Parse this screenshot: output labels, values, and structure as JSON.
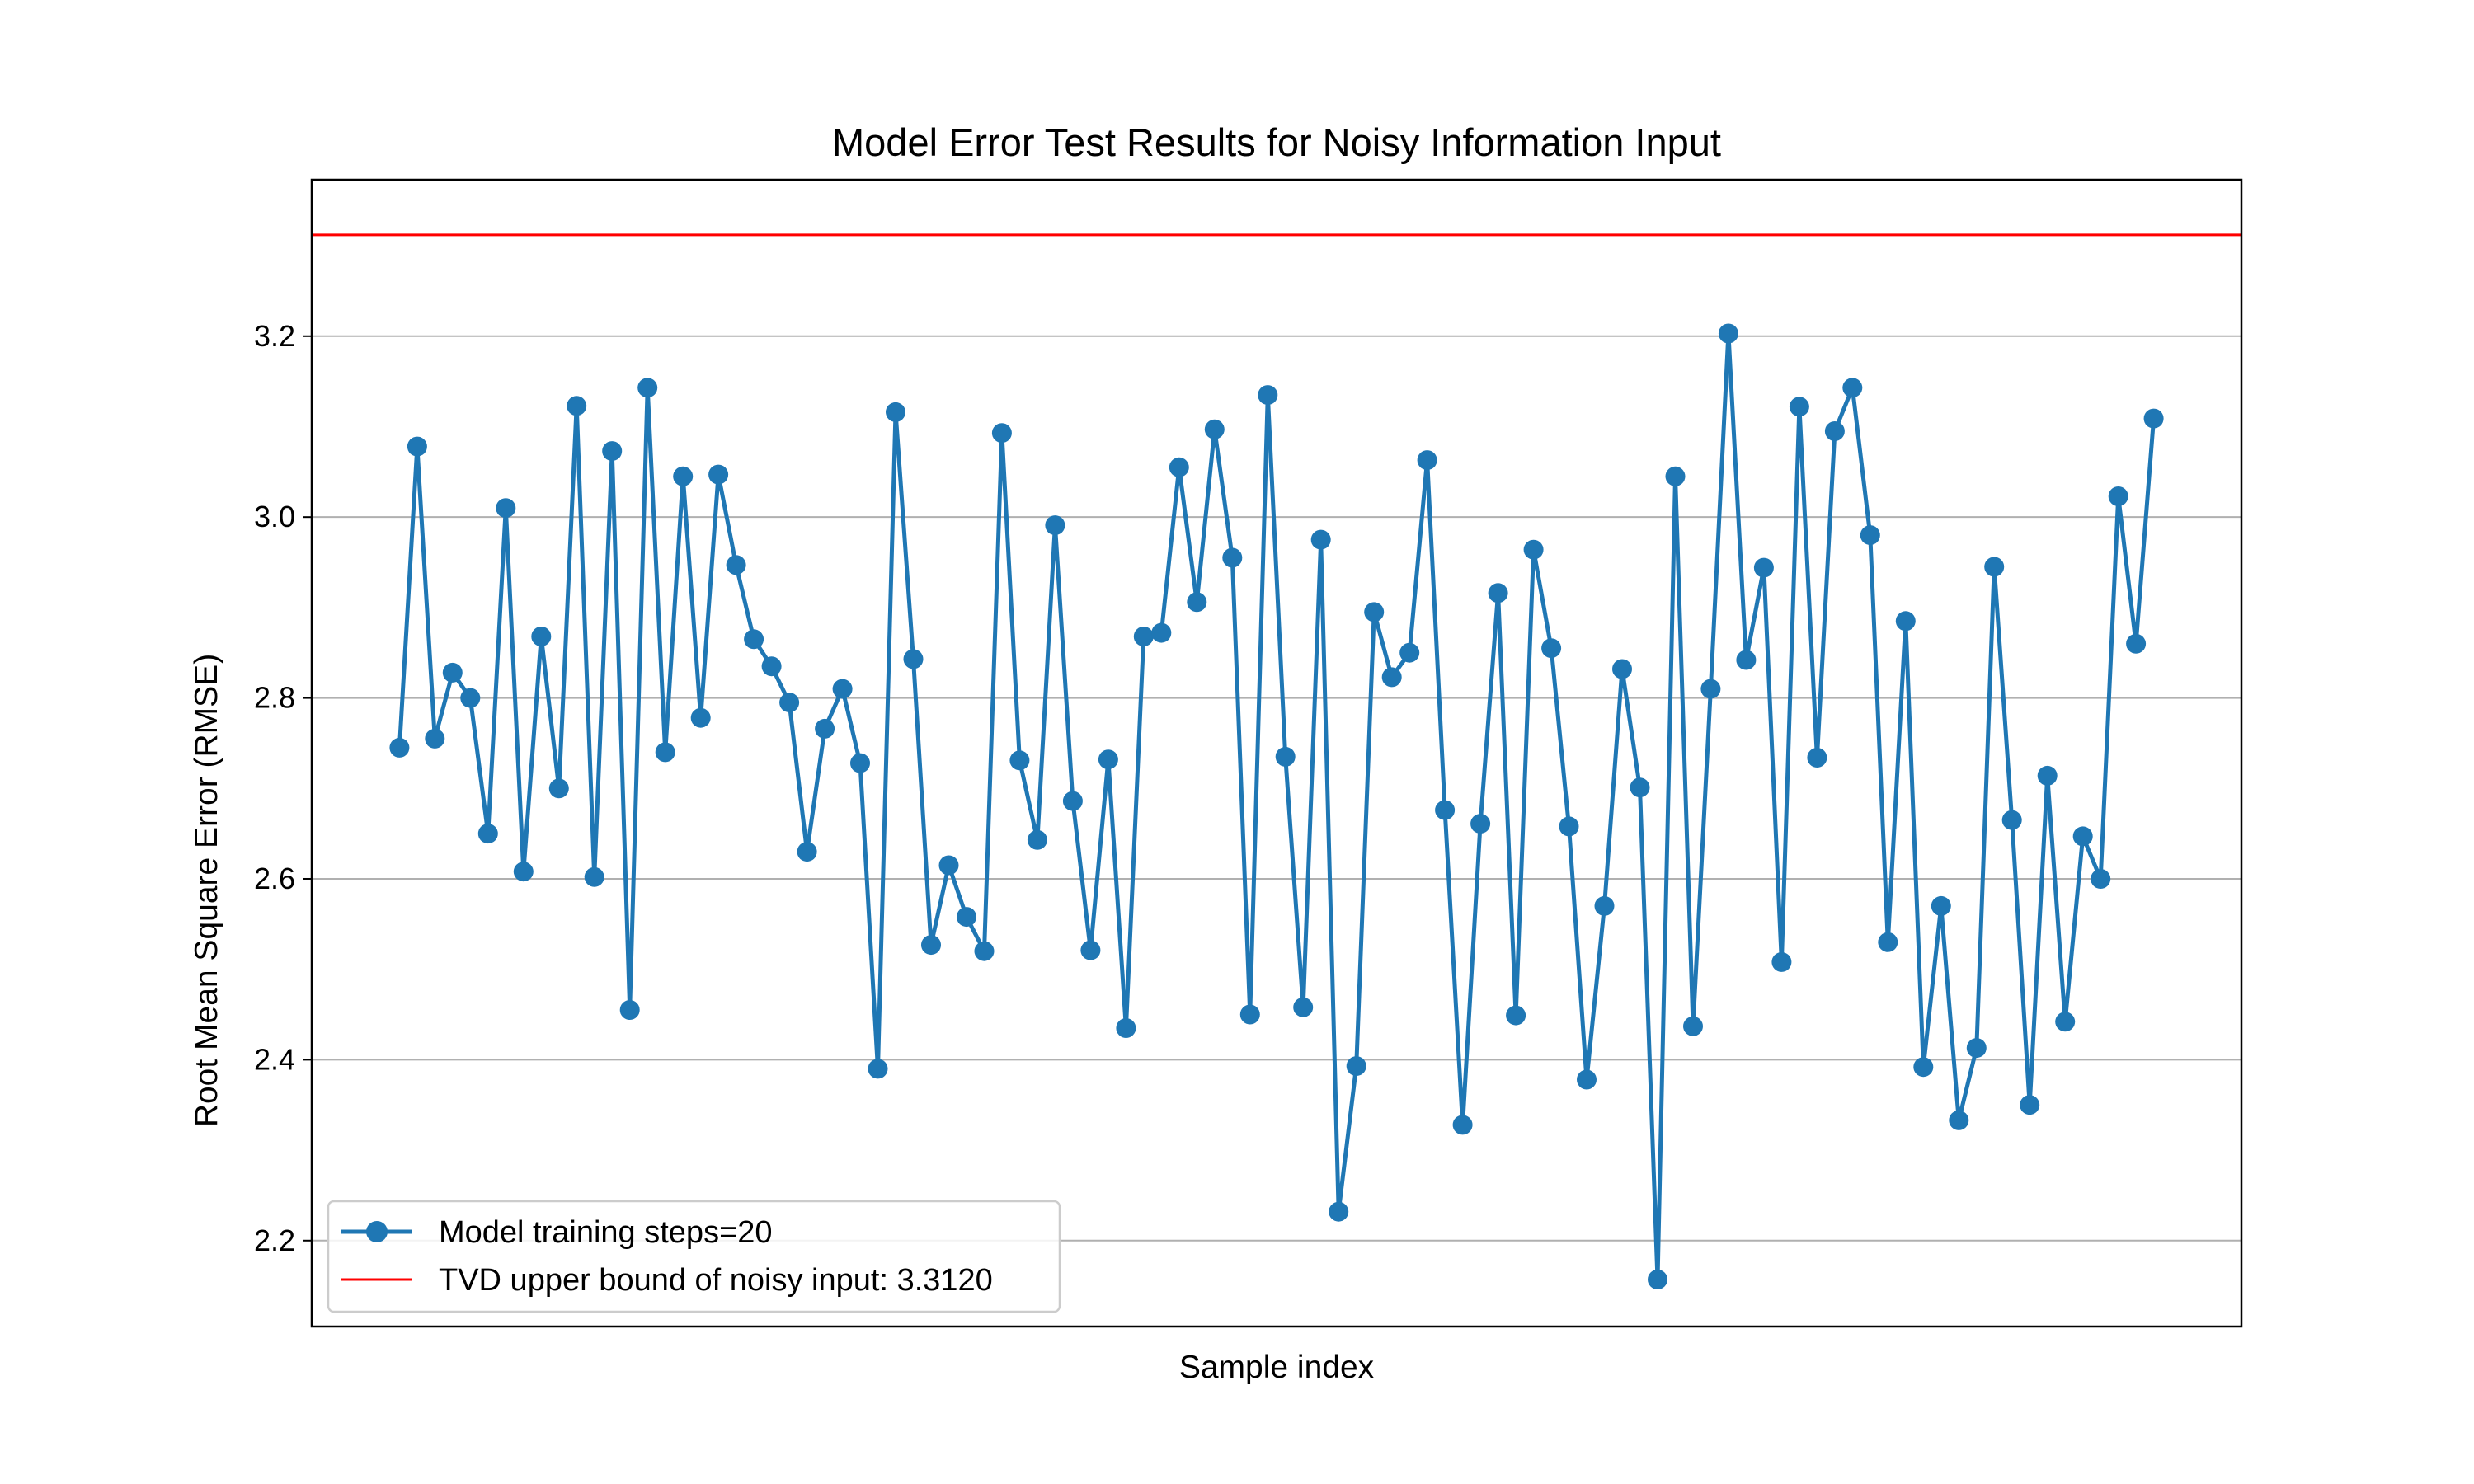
{
  "chart_data": {
    "type": "line",
    "title": "Model Error Test Results for Noisy Information Input",
    "xlabel": "Sample index",
    "ylabel": "Root Mean Square Error (RMSE)",
    "ylim": [
      2.105,
      3.373
    ],
    "yticks": [
      2.2,
      2.4,
      2.6,
      2.8,
      3.0,
      3.2
    ],
    "ytick_labels": [
      "2.2",
      "2.4",
      "2.6",
      "2.8",
      "3.0",
      "3.2"
    ],
    "xlim": [
      -4.95,
      103.95
    ],
    "xticks_visible": false,
    "grid": "y",
    "legend_position": "lower-left",
    "series": [
      {
        "name": "Model training steps=20",
        "color": "#1f77b4",
        "marker": "circle",
        "x": [
          0,
          1,
          2,
          3,
          4,
          5,
          6,
          7,
          8,
          9,
          10,
          11,
          12,
          13,
          14,
          15,
          16,
          17,
          18,
          19,
          20,
          21,
          22,
          23,
          24,
          25,
          26,
          27,
          28,
          29,
          30,
          31,
          32,
          33,
          34,
          35,
          36,
          37,
          38,
          39,
          40,
          41,
          42,
          43,
          44,
          45,
          46,
          47,
          48,
          49,
          50,
          51,
          52,
          53,
          54,
          55,
          56,
          57,
          58,
          59,
          60,
          61,
          62,
          63,
          64,
          65,
          66,
          67,
          68,
          69,
          70,
          71,
          72,
          73,
          74,
          75,
          76,
          77,
          78,
          79,
          80,
          81,
          82,
          83,
          84,
          85,
          86,
          87,
          88,
          89,
          90,
          91,
          92,
          93,
          94,
          95,
          96,
          97,
          98,
          99
        ],
        "y": [
          2.745,
          3.078,
          2.755,
          2.828,
          2.8,
          2.65,
          3.01,
          2.608,
          2.868,
          2.7,
          3.123,
          2.602,
          3.073,
          2.455,
          3.143,
          2.74,
          3.045,
          2.778,
          3.047,
          2.947,
          2.865,
          2.835,
          2.795,
          2.63,
          2.766,
          2.81,
          2.728,
          2.39,
          3.116,
          2.843,
          2.527,
          2.615,
          2.558,
          2.52,
          3.093,
          2.731,
          2.643,
          2.991,
          2.686,
          2.521,
          2.732,
          2.435,
          2.868,
          2.872,
          3.055,
          2.906,
          3.097,
          2.955,
          2.45,
          3.135,
          2.735,
          2.458,
          2.975,
          2.232,
          2.393,
          2.895,
          2.823,
          2.85,
          3.063,
          2.676,
          2.328,
          2.661,
          2.916,
          2.449,
          2.964,
          2.855,
          2.658,
          2.378,
          2.57,
          2.832,
          2.701,
          2.157,
          3.045,
          2.437,
          2.81,
          3.203,
          2.842,
          2.944,
          2.508,
          3.122,
          2.734,
          3.095,
          3.143,
          2.98,
          2.53,
          2.885,
          2.392,
          2.57,
          2.333,
          2.413,
          2.945,
          2.665,
          2.35,
          2.714,
          2.442,
          2.647,
          2.6,
          3.023,
          2.86,
          3.109
        ]
      }
    ],
    "reference_line": {
      "name": "TVD upper bound of noisy input: 3.3120",
      "y": 3.312,
      "color": "#ff0000"
    }
  }
}
